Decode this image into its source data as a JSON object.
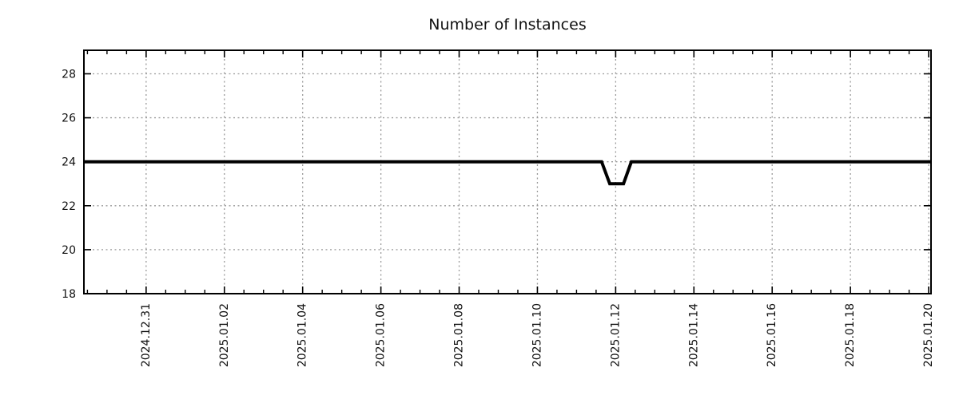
{
  "chart_data": {
    "type": "line",
    "title": "Number of Instances",
    "xlabel": "",
    "ylabel": "",
    "legend": "none",
    "grid": "dashed at major ticks",
    "x_axis": {
      "kind": "time",
      "tick_labels": [
        "2024.12.31",
        "2025.01.02",
        "2025.01.04",
        "2025.01.06",
        "2025.01.08",
        "2025.01.10",
        "2025.01.12",
        "2025.01.14",
        "2025.01.16",
        "2025.01.18",
        "2025.01.20"
      ],
      "tick_positions_days": [
        0,
        2,
        4,
        6,
        8,
        10,
        12,
        14,
        16,
        18,
        20
      ],
      "minor_tick_interval_days": 0.5,
      "range_days": [
        -1.59,
        20.06
      ],
      "day_zero": "2024.12.31",
      "label_rotation_deg": -90
    },
    "y_axis": {
      "tick_labels": [
        "18",
        "20",
        "22",
        "24",
        "26",
        "28"
      ],
      "tick_values": [
        18,
        20,
        22,
        24,
        26,
        28
      ],
      "range": [
        18,
        29.07
      ]
    },
    "series": [
      {
        "name": "instances",
        "color": "#000000",
        "line_width": 4,
        "points_day_value": [
          [
            -1.59,
            24
          ],
          [
            11.64,
            24
          ],
          [
            11.85,
            23
          ],
          [
            12.2,
            23
          ],
          [
            12.4,
            24
          ],
          [
            20.06,
            24
          ]
        ]
      }
    ],
    "annotations": "constant 24 instances with a dip to 23 shortly before/after 2025.01.12"
  },
  "colors": {
    "background": "#ffffff",
    "axis_border": "#000000",
    "grid": "#9a9a9a",
    "line": "#000000",
    "text": "#111111"
  }
}
